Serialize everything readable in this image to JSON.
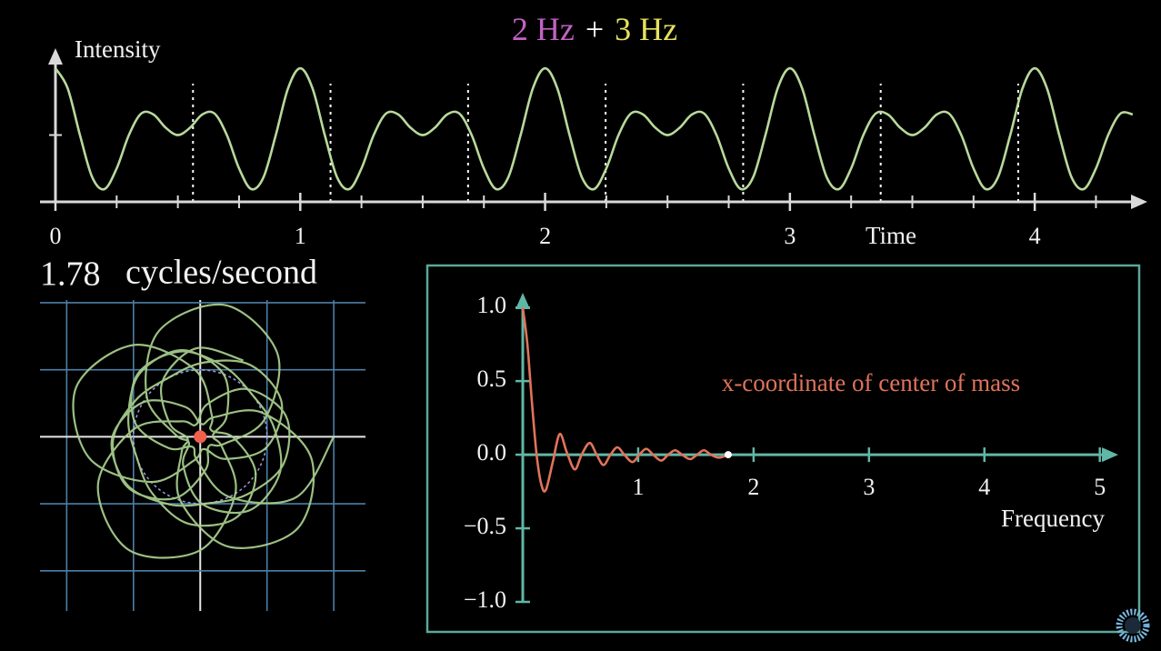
{
  "chart_data": [
    {
      "type": "line",
      "title_parts": [
        {
          "text": "2 Hz",
          "color": "#c462c4"
        },
        {
          "text": "+",
          "color": "#ffffff"
        },
        {
          "text": "3 Hz",
          "color": "#e6e25e"
        }
      ],
      "y_label": "Intensity",
      "x_label": "Time",
      "axis_color": "#d9d9d9",
      "color": "#b8d99b",
      "xlim": [
        0,
        4.46
      ],
      "ylim": [
        0,
        4.6
      ],
      "xticks": [
        0,
        1,
        2,
        3,
        4
      ],
      "minor_xticks": [
        0.25,
        0.5,
        0.75,
        1.25,
        1.5,
        1.75,
        2.25,
        2.5,
        2.75,
        3.25,
        3.5,
        3.75,
        4.25
      ],
      "minor_yticks": [
        2
      ],
      "cycle_marks": [
        0.5618,
        1.1236,
        1.6854,
        2.2472,
        2.809,
        3.3708,
        3.9326
      ],
      "x": [
        0,
        0.05,
        0.1,
        0.15,
        0.2,
        0.25,
        0.3,
        0.35,
        0.4,
        0.45,
        0.5,
        0.55,
        0.6,
        0.65,
        0.7,
        0.75,
        0.8,
        0.85,
        0.9,
        0.95,
        1,
        1.05,
        1.1,
        1.15,
        1.2,
        1.25,
        1.3,
        1.35,
        1.4,
        1.45,
        1.5,
        1.55,
        1.6,
        1.65,
        1.7,
        1.75,
        1.8,
        1.85,
        1.9,
        1.95,
        2,
        2.05,
        2.1,
        2.15,
        2.2,
        2.25,
        2.3,
        2.35,
        2.4,
        2.45,
        2.5,
        2.55,
        2.6,
        2.65,
        2.7,
        2.75,
        2.8,
        2.85,
        2.9,
        2.95,
        3,
        3.05,
        3.1,
        3.15,
        3.2,
        3.25,
        3.3,
        3.35,
        3.4,
        3.45,
        3.5,
        3.55,
        3.6,
        3.65,
        3.7,
        3.75,
        3.8,
        3.85,
        3.9,
        3.95,
        4,
        4.05,
        4.1,
        4.15,
        4.2,
        4.25,
        4.3,
        4.35,
        4.4
      ],
      "values": [
        4,
        3.397,
        2,
        0.74,
        0.382,
        1,
        2,
        2.642,
        2.618,
        2.221,
        2,
        2.221,
        2.618,
        2.642,
        2,
        1,
        0.382,
        0.74,
        2,
        3.397,
        4,
        3.397,
        2,
        0.74,
        0.382,
        1,
        2,
        2.642,
        2.618,
        2.221,
        2,
        2.221,
        2.618,
        2.642,
        2,
        1,
        0.382,
        0.74,
        2,
        3.397,
        4,
        3.397,
        2,
        0.74,
        0.382,
        1,
        2,
        2.642,
        2.618,
        2.221,
        2,
        2.221,
        2.618,
        2.642,
        2,
        1,
        0.382,
        0.74,
        2,
        3.397,
        4,
        3.397,
        2,
        0.74,
        0.382,
        1,
        2,
        2.642,
        2.618,
        2.221,
        2,
        2.221,
        2.618,
        2.642,
        2,
        1,
        0.382,
        0.74,
        2,
        3.397,
        4,
        3.397,
        2,
        0.74,
        0.382,
        1,
        2,
        2.642,
        2.618
      ]
    },
    {
      "type": "winding",
      "frequency": 1.78,
      "unit": "cycles/second",
      "xlim": [
        -4.8,
        4.95
      ],
      "ylim": [
        -5.2,
        4.08
      ],
      "xticks": [
        -4,
        -2,
        0,
        2,
        4
      ],
      "yticks": [
        -4,
        -2,
        0,
        2,
        4
      ],
      "grid_color": "#4d7fa6",
      "guide_radius": 2,
      "guide_color": "#9a9ae0",
      "color": "#a9d08e",
      "center_of_mass": {
        "x": 0,
        "y": 0
      },
      "center_color": "#f0604a"
    },
    {
      "type": "line",
      "x_label": "Frequency",
      "annotation": "x-coordinate of center of mass",
      "annotation_color": "#e0735a",
      "axis_color": "#5fb7a6",
      "color": "#e0735a",
      "end_marker_color": "#ffffff",
      "xlim": [
        0,
        5.16
      ],
      "ylim": [
        -1,
        1.1
      ],
      "xticks": [
        1,
        2,
        3,
        4,
        5
      ],
      "yticks": [
        {
          "value": -1,
          "label": "−1.0"
        },
        {
          "value": -0.5,
          "label": "−0.5"
        },
        {
          "value": 0,
          "label": "0.0"
        },
        {
          "value": 0.5,
          "label": "0.5"
        },
        {
          "value": 1,
          "label": "1.0"
        }
      ],
      "x": [
        0,
        0.04,
        0.08,
        0.12,
        0.16,
        0.2,
        0.26,
        0.32,
        0.38,
        0.45,
        0.51,
        0.58,
        0.64,
        0.7,
        0.76,
        0.82,
        0.88,
        0.95,
        1.01,
        1.07,
        1.13,
        1.2,
        1.26,
        1.32,
        1.38,
        1.45,
        1.51,
        1.57,
        1.63,
        1.7,
        1.78
      ],
      "values": [
        1.0,
        0.75,
        0.35,
        0.0,
        -0.2,
        -0.24,
        -0.05,
        0.14,
        0.02,
        -0.1,
        0.0,
        0.08,
        0.0,
        -0.07,
        0.0,
        0.05,
        0.0,
        -0.05,
        0.0,
        0.04,
        0.0,
        -0.04,
        0.0,
        0.03,
        0.0,
        -0.03,
        0.0,
        0.03,
        0.0,
        -0.02,
        0.0
      ]
    }
  ]
}
